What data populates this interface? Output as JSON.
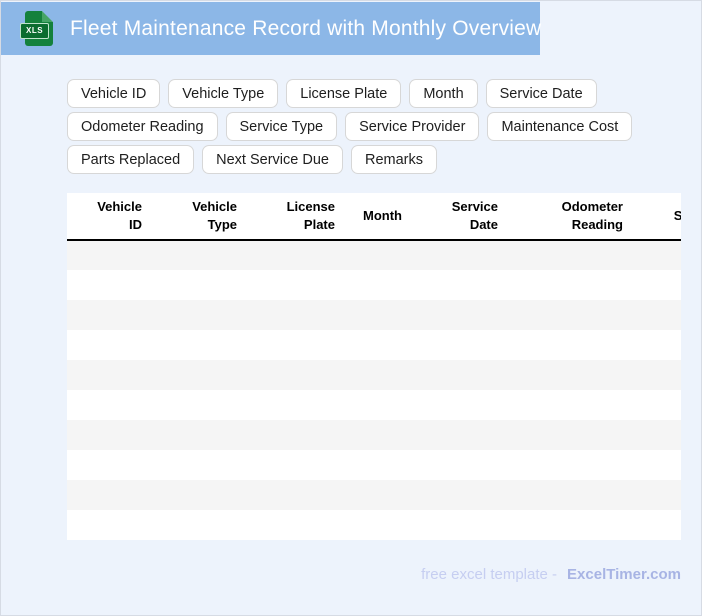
{
  "header": {
    "title": "Fleet Maintenance Record with Monthly Overview",
    "file_badge": "XLS"
  },
  "chips": [
    "Vehicle ID",
    "Vehicle Type",
    "License Plate",
    "Month",
    "Service Date",
    "Odometer Reading",
    "Service Type",
    "Service Provider",
    "Maintenance Cost",
    "Parts Replaced",
    "Next Service Due",
    "Remarks"
  ],
  "table": {
    "columns": [
      "Vehicle\nID",
      "Vehicle\nType",
      "License\nPlate",
      "Month",
      "Service\nDate",
      "Odometer\nReading",
      "Service Type"
    ],
    "empty_row_count": 10
  },
  "footer": {
    "tagline": "free excel template -",
    "brand": "ExcelTimer.com"
  },
  "colors": {
    "banner": "#8cb7e7",
    "page_background": "#edf3fc",
    "icon_green": "#14813c",
    "icon_badge_green": "#0b6c2f",
    "stripe_gray": "#f5f5f5",
    "footer_tagline": "#c6cef1",
    "footer_brand": "#a8b4e4"
  }
}
